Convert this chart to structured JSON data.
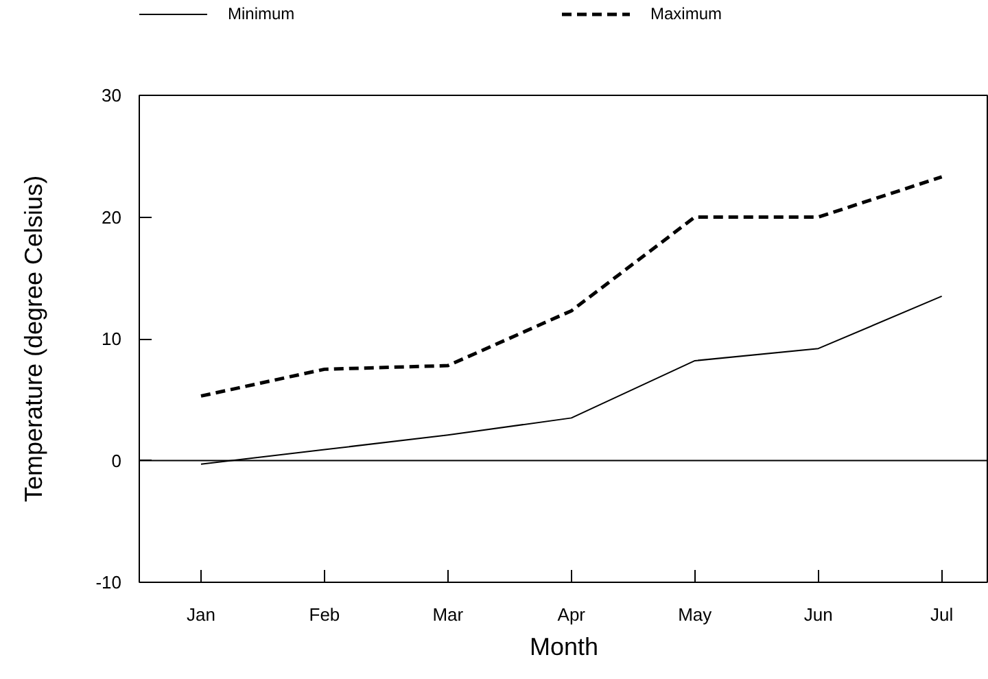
{
  "chart_data": {
    "type": "line",
    "xlabel": "Month",
    "ylabel": "Temperature (degree Celsius)",
    "categories": [
      "Jan",
      "Feb",
      "Mar",
      "Apr",
      "May",
      "Jun",
      "Jul"
    ],
    "series": [
      {
        "name": "Minimum",
        "color": "#000000",
        "line_style": "solid",
        "values": [
          -0.3,
          0.9,
          2.1,
          3.5,
          8.2,
          9.2,
          13.5
        ]
      },
      {
        "name": "Maximum",
        "color": "#000000",
        "line_style": "dashed",
        "values": [
          5.3,
          7.5,
          7.8,
          12.3,
          20,
          20,
          23.3
        ]
      }
    ],
    "ylim": [
      -10,
      30
    ],
    "yticks": [
      -10,
      0,
      10,
      20,
      30
    ],
    "ref_lines": [
      {
        "axis": "y",
        "value": 0,
        "color": "#000000"
      }
    ],
    "grid": false,
    "legend": "top"
  }
}
